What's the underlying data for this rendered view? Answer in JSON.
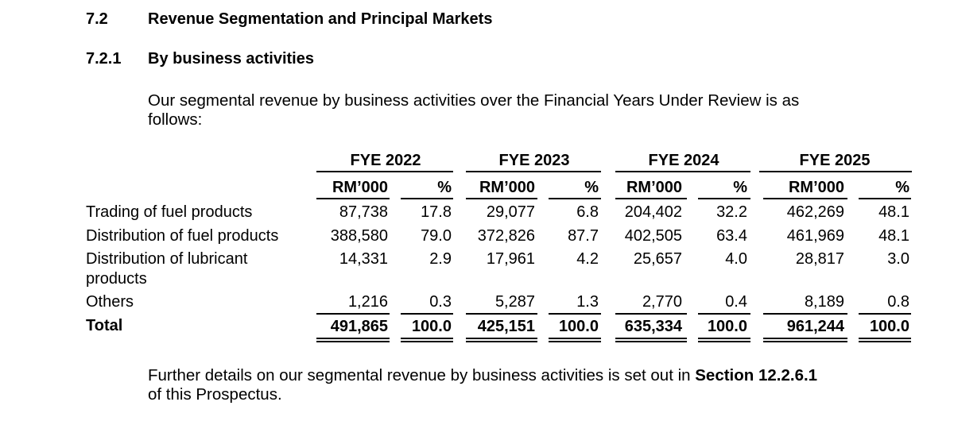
{
  "section": {
    "number": "7.2",
    "title": "Revenue Segmentation and Principal Markets"
  },
  "subsection": {
    "number": "7.2.1",
    "title": "By business activities"
  },
  "intro": {
    "line1": "Our segmental revenue by business activities over the Financial Years Under Review is as",
    "line2": "follows:"
  },
  "table": {
    "years": [
      "FYE 2022",
      "FYE 2023",
      "FYE 2024",
      "FYE 2025"
    ],
    "unit_label": "RM’000",
    "pct_label": "%",
    "rows": [
      {
        "label": "Trading of fuel products",
        "values": [
          "87,738",
          "17.8",
          "29,077",
          "6.8",
          "204,402",
          "32.2",
          "462,269",
          "48.1"
        ]
      },
      {
        "label": "Distribution of fuel products",
        "values": [
          "388,580",
          "79.0",
          "372,826",
          "87.7",
          "402,505",
          "63.4",
          "461,969",
          "48.1"
        ]
      },
      {
        "label": "Distribution of lubricant",
        "label_line2": "products",
        "values": [
          "14,331",
          "2.9",
          "17,961",
          "4.2",
          "25,657",
          "4.0",
          "28,817",
          "3.0"
        ]
      },
      {
        "label": "Others",
        "values": [
          "1,216",
          "0.3",
          "5,287",
          "1.3",
          "2,770",
          "0.4",
          "8,189",
          "0.8"
        ]
      }
    ],
    "total": {
      "label": "Total",
      "values": [
        "491,865",
        "100.0",
        "425,151",
        "100.0",
        "635,334",
        "100.0",
        "961,244",
        "100.0"
      ]
    }
  },
  "footer": {
    "line1_prefix": "Further details on our segmental revenue by business activities is set out in ",
    "line1_bold": "Section 12.2.6.1",
    "line2": "of this Prospectus."
  }
}
